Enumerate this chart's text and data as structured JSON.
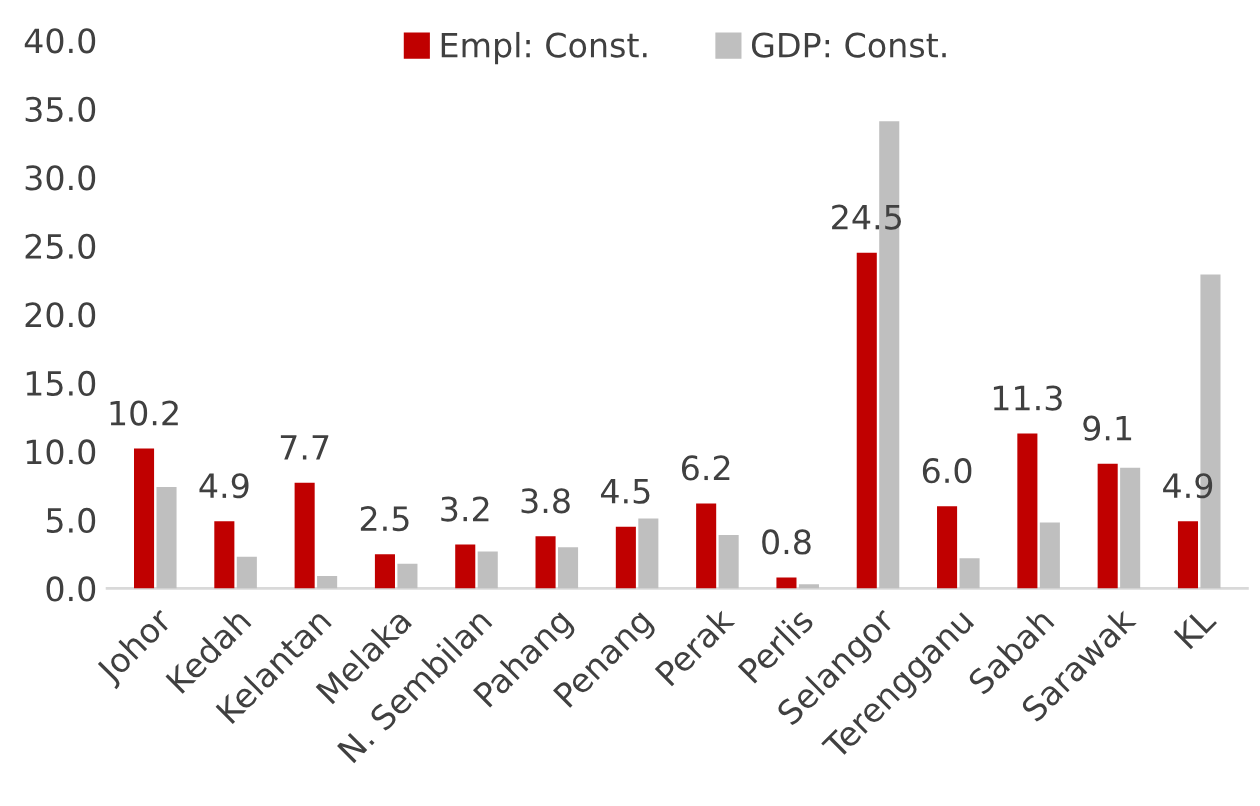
{
  "chart_data": {
    "type": "bar",
    "categories": [
      "Johor",
      "Kedah",
      "Kelantan",
      "Melaka",
      "N. Sembilan",
      "Pahang",
      "Penang",
      "Perak",
      "Perlis",
      "Selangor",
      "Terengganu",
      "Sabah",
      "Sarawak",
      "KL"
    ],
    "series": [
      {
        "name": "Empl: Const.",
        "color": "#c00000",
        "values": [
          10.2,
          4.9,
          7.7,
          2.5,
          3.2,
          3.8,
          4.5,
          6.2,
          0.8,
          24.5,
          6.0,
          11.3,
          9.1,
          4.9
        ],
        "value_labels": [
          "10.2",
          "4.9",
          "7.7",
          "2.5",
          "3.2",
          "3.8",
          "4.5",
          "6.2",
          "0.8",
          "24.5",
          "6.0",
          "11.3",
          "9.1",
          "4.9"
        ]
      },
      {
        "name": "GDP: Const.",
        "color": "#bfbfbf",
        "values": [
          7.4,
          2.3,
          0.9,
          1.8,
          2.7,
          3.0,
          5.1,
          3.9,
          0.3,
          34.1,
          2.2,
          4.8,
          8.8,
          22.9
        ]
      }
    ],
    "ylim": [
      0,
      40
    ],
    "yticks": [
      {
        "value": 0,
        "label": "0.0"
      },
      {
        "value": 5,
        "label": "5.0"
      },
      {
        "value": 10,
        "label": "10.0"
      },
      {
        "value": 15,
        "label": "15.0"
      },
      {
        "value": 20,
        "label": "20.0"
      },
      {
        "value": 25,
        "label": "25.0"
      },
      {
        "value": 30,
        "label": "30.0"
      },
      {
        "value": 35,
        "label": "35.0"
      },
      {
        "value": 40,
        "label": "40.0"
      }
    ],
    "grid": false,
    "legend": "top"
  }
}
